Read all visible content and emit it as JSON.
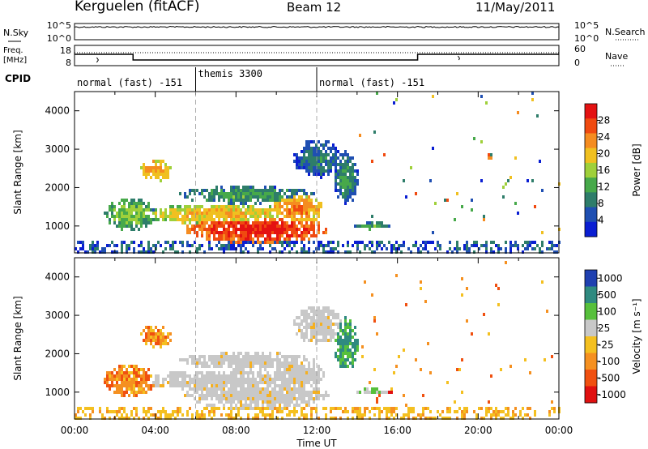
{
  "header": {
    "station": "Kerguelen (fitACF)",
    "beam": "Beam 12",
    "date": "11/May/2011"
  },
  "noise_panel": {
    "left_label": "N.Sky",
    "right_label": "N.Search",
    "left_ticks": [
      "10^5",
      "10^0"
    ],
    "right_ticks": [
      "10^5",
      "10^0"
    ]
  },
  "freq_panel": {
    "left_label_line1": "Freq.",
    "left_label_line2": "[MHz]",
    "right_label": "Nave",
    "left_ticks": [
      "18",
      "8"
    ],
    "right_ticks": [
      "60",
      "0"
    ]
  },
  "cpid": {
    "label": "CPID",
    "segments": [
      {
        "name": "normal (fast) -151",
        "start_hour": 0,
        "end_hour": 6
      },
      {
        "name": "themis 3300",
        "start_hour": 6,
        "end_hour": 12
      },
      {
        "name": "normal (fast) -151",
        "start_hour": 12,
        "end_hour": 24
      }
    ]
  },
  "chart_data": [
    {
      "type": "heatmap",
      "name": "power",
      "ylabel": "Slant Range [km]",
      "yticks": [
        "1000",
        "2000",
        "3000",
        "4000"
      ],
      "ylim": [
        300,
        4500
      ],
      "xlim": [
        0,
        24
      ],
      "colorbar": {
        "label": "Power [dB]",
        "ticks": [
          "4",
          "8",
          "12",
          "16",
          "20",
          "24",
          "28"
        ],
        "range": [
          0,
          32
        ],
        "colors": [
          "#0a1ed2",
          "#1f4fb2",
          "#2e7d6a",
          "#47a94a",
          "#9fd03a",
          "#f0c020",
          "#f58c20",
          "#f04a10",
          "#e41212"
        ]
      }
    },
    {
      "type": "heatmap",
      "name": "velocity",
      "ylabel": "Slant Range [km]",
      "yticks": [
        "1000",
        "2000",
        "3000",
        "4000"
      ],
      "ylim": [
        300,
        4500
      ],
      "xlim": [
        0,
        24
      ],
      "colorbar": {
        "label": "Velocity [m s⁻¹]",
        "ticks": [
          "1000",
          "500",
          "100",
          "25",
          "-25",
          "-100",
          "-500",
          "-1000"
        ],
        "colors": [
          "#1f40b0",
          "#2f8a80",
          "#57c03c",
          "#c8c8c8",
          "#f4c020",
          "#f59020",
          "#f05010",
          "#e01010"
        ]
      }
    }
  ],
  "x_axis": {
    "label": "Time UT",
    "ticks": [
      "00:00",
      "04:00",
      "08:00",
      "12:00",
      "16:00",
      "20:00",
      "00:00"
    ]
  }
}
